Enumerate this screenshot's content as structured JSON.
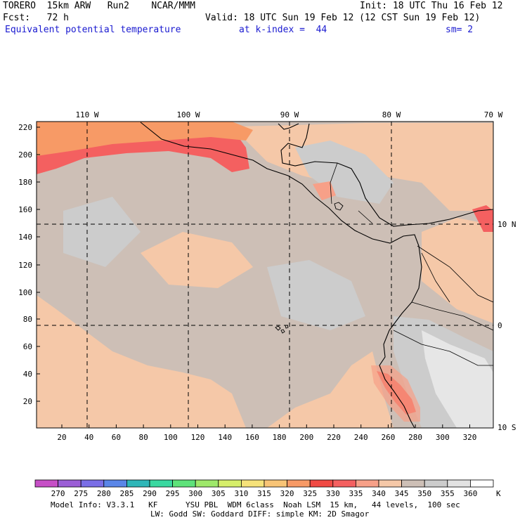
{
  "header": {
    "model": "TORERO  15km ARW   Run2    NCAR/MMM",
    "init": "Init: 18 UTC Thu 16 Feb 12",
    "fcst": "Fcst:   72 h",
    "valid": "Valid: 18 UTC Sun 19 Feb 12 (12 CST Sun 19 Feb 12)",
    "field": "Equivalent potential temperature",
    "level": "at k-index =  44",
    "smooth": "sm= 2"
  },
  "map": {
    "top_lon_labels": [
      "110 W",
      "100 W",
      "90 W",
      "80 W",
      "70 W"
    ],
    "right_lat_labels": [
      "10 N",
      "0",
      "10 S"
    ],
    "y_ticks": [
      "220",
      "200",
      "180",
      "160",
      "140",
      "120",
      "100",
      "80",
      "60",
      "40",
      "20"
    ],
    "x_ticks": [
      "20",
      "40",
      "60",
      "80",
      "100",
      "120",
      "140",
      "160",
      "180",
      "200",
      "220",
      "240",
      "260",
      "280",
      "300",
      "320"
    ]
  },
  "colorbar": {
    "labels": [
      "270",
      "275",
      "280",
      "285",
      "290",
      "295",
      "300",
      "305",
      "310",
      "315",
      "320",
      "325",
      "330",
      "335",
      "340",
      "345",
      "350",
      "355",
      "360"
    ],
    "unit": "K",
    "colors": [
      "#c64fc6",
      "#9b5ed6",
      "#7a6ee6",
      "#5a86e8",
      "#2fb6b8",
      "#3ad8a0",
      "#5ee27a",
      "#9ee86a",
      "#d6ee6a",
      "#f6e27a",
      "#f8c476",
      "#f79a66",
      "#f04a44",
      "#f46060",
      "#f7a088",
      "#f5c8a8",
      "#cdbfb6",
      "#cccccc",
      "#e2e2e2",
      "#ffffff"
    ]
  },
  "footer": {
    "line1": "Model Info: V3.3.1   KF      YSU PBL  WDM 6class  Noah LSM  15 km,   44 levels,  100 sec",
    "line2": "LW: Godd SW: Goddard DIFF: simple KM: 2D Smagor"
  }
}
